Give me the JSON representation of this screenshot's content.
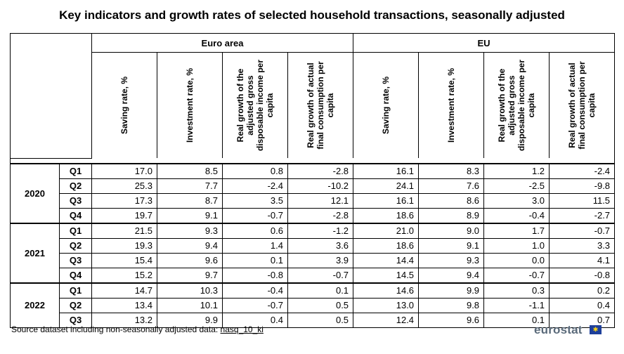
{
  "title": "Key indicators and growth rates of selected household transactions, seasonally adjusted",
  "groups": [
    "Euro area",
    "EU"
  ],
  "columns": [
    "Saving rate, %",
    "Investment rate, %",
    "Real growth of the adjusted gross disposable income per capita",
    "Real growth of actual final consumption per capita"
  ],
  "years": [
    {
      "year": "2020",
      "rows": [
        {
          "q": "Q1",
          "v": [
            "17.0",
            "8.5",
            "0.8",
            "-2.8",
            "16.1",
            "8.3",
            "1.2",
            "-2.4"
          ]
        },
        {
          "q": "Q2",
          "v": [
            "25.3",
            "7.7",
            "-2.4",
            "-10.2",
            "24.1",
            "7.6",
            "-2.5",
            "-9.8"
          ]
        },
        {
          "q": "Q3",
          "v": [
            "17.3",
            "8.7",
            "3.5",
            "12.1",
            "16.1",
            "8.6",
            "3.0",
            "11.5"
          ]
        },
        {
          "q": "Q4",
          "v": [
            "19.7",
            "9.1",
            "-0.7",
            "-2.8",
            "18.6",
            "8.9",
            "-0.4",
            "-2.7"
          ]
        }
      ]
    },
    {
      "year": "2021",
      "rows": [
        {
          "q": "Q1",
          "v": [
            "21.5",
            "9.3",
            "0.6",
            "-1.2",
            "21.0",
            "9.0",
            "1.7",
            "-0.7"
          ]
        },
        {
          "q": "Q2",
          "v": [
            "19.3",
            "9.4",
            "1.4",
            "3.6",
            "18.6",
            "9.1",
            "1.0",
            "3.3"
          ]
        },
        {
          "q": "Q3",
          "v": [
            "15.4",
            "9.6",
            "0.1",
            "3.9",
            "14.4",
            "9.3",
            "0.0",
            "4.1"
          ]
        },
        {
          "q": "Q4",
          "v": [
            "15.2",
            "9.7",
            "-0.8",
            "-0.7",
            "14.5",
            "9.4",
            "-0.7",
            "-0.8"
          ]
        }
      ]
    },
    {
      "year": "2022",
      "rows": [
        {
          "q": "Q1",
          "v": [
            "14.7",
            "10.3",
            "-0.4",
            "0.1",
            "14.6",
            "9.9",
            "0.3",
            "0.2"
          ]
        },
        {
          "q": "Q2",
          "v": [
            "13.4",
            "10.1",
            "-0.7",
            "0.5",
            "13.0",
            "9.8",
            "-1.1",
            "0.4"
          ]
        },
        {
          "q": "Q3",
          "v": [
            "13.2",
            "9.9",
            "0.4",
            "0.5",
            "12.4",
            "9.6",
            "0.1",
            "0.7"
          ]
        }
      ]
    }
  ],
  "footer": {
    "text": "Source dataset including non-seasonally adjusted data: ",
    "link": "nasq_10_ki"
  },
  "logo": {
    "text": "eurostat",
    "flag_color": "#1e3f9a",
    "star_color": "#ffd617"
  }
}
